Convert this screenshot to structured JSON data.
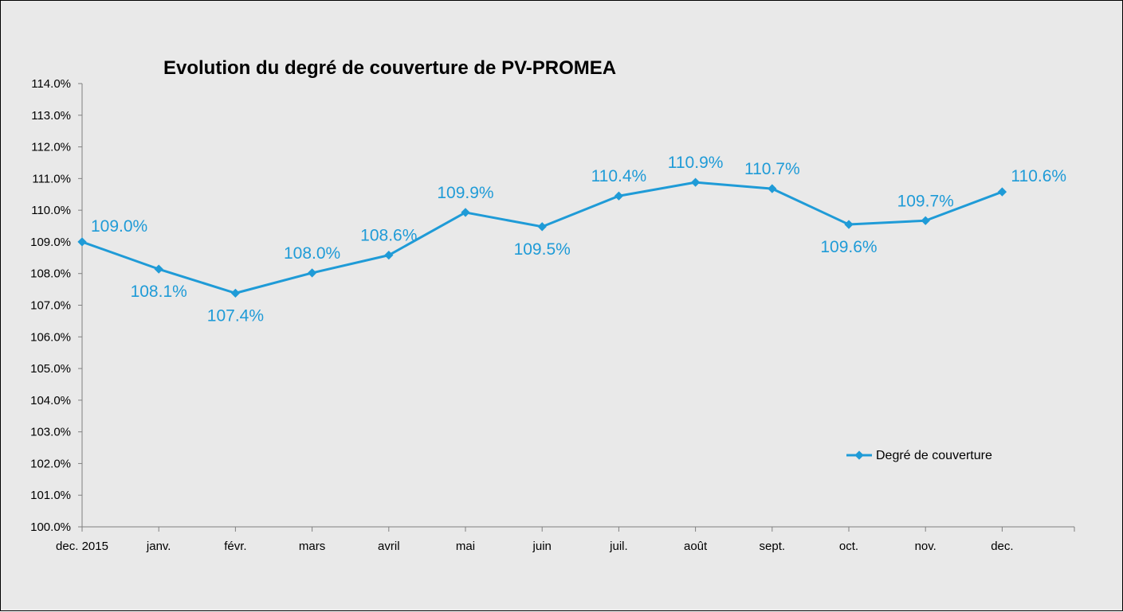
{
  "chart_data": {
    "type": "line",
    "title": "Evolution du degré de couverture de PV-PROMEA",
    "xlabel": "",
    "ylabel": "",
    "categories": [
      "dec. 2015",
      "janv.",
      "févr.",
      "mars",
      "avril",
      "mai",
      "juin",
      "juil.",
      "août",
      "sept.",
      "oct.",
      "nov.",
      "dec."
    ],
    "series": [
      {
        "name": "Degré de couverture",
        "color": "#1f9bd7",
        "values": [
          109.0,
          108.14,
          107.38,
          108.02,
          108.58,
          109.93,
          109.48,
          110.45,
          110.88,
          110.68,
          109.55,
          109.67,
          110.58
        ],
        "labels": [
          "109.0%",
          "108.1%",
          "107.4%",
          "108.0%",
          "108.6%",
          "109.9%",
          "109.5%",
          "110.4%",
          "110.9%",
          "110.7%",
          "109.6%",
          "109.7%",
          "110.6%"
        ],
        "label_positions": [
          "right",
          "below",
          "below",
          "above",
          "above",
          "above",
          "below",
          "above",
          "above",
          "above",
          "below",
          "above",
          "right"
        ]
      }
    ],
    "ylim": [
      100.0,
      114.0
    ],
    "yticks": [
      "100.0%",
      "101.0%",
      "102.0%",
      "103.0%",
      "104.0%",
      "105.0%",
      "106.0%",
      "107.0%",
      "108.0%",
      "109.0%",
      "110.0%",
      "111.0%",
      "112.0%",
      "113.0%",
      "114.0%"
    ],
    "grid": false,
    "legend": {
      "position": "right",
      "entries": [
        "Degré de couverture"
      ]
    },
    "background": "#e9e9e9",
    "axis_color": "#808080"
  }
}
